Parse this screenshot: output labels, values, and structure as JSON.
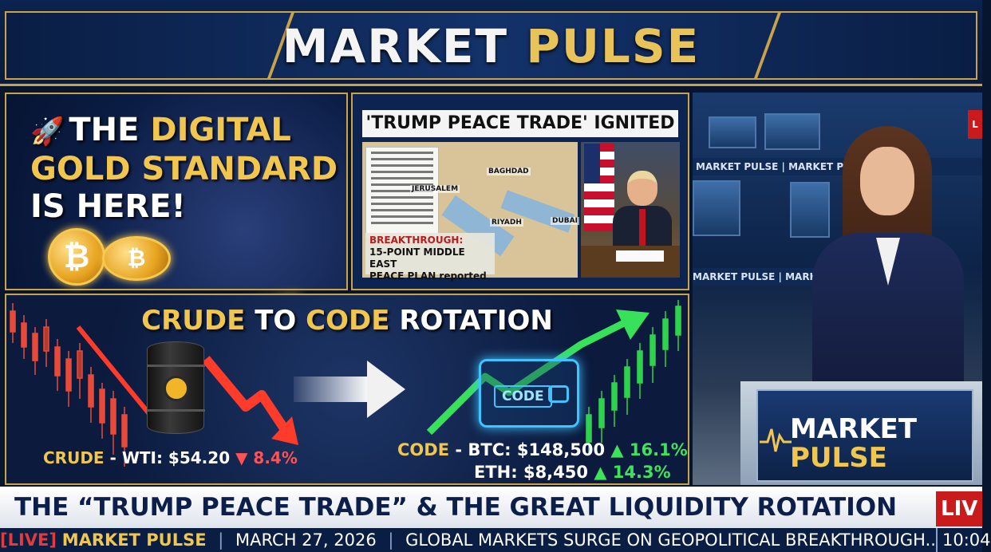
{
  "header": {
    "title_part1": "MARKET",
    "title_part2": "PULSE"
  },
  "gold_panel": {
    "line1_a": "THE",
    "line1_b": "DIGITAL",
    "line2": "GOLD STANDARD",
    "line3": "IS HERE!",
    "coin_symbol": "₿"
  },
  "news_panel": {
    "title": "'TRUMP PEACE TRADE' IGNITED",
    "cities": [
      "JERUSALEM",
      "BAGHDAD",
      "RIYADH",
      "DUBAI"
    ],
    "breakthrough_label": "BREAKTHROUGH:",
    "breakthrough_text_1": "15-POINT MIDDLE EAST",
    "breakthrough_text_2": "PEACE PLAN reported"
  },
  "rotation_panel": {
    "title_a": "CRUDE",
    "title_b": "TO",
    "title_c": "CODE",
    "title_d": "ROTATION",
    "crude_label": "CRUDE",
    "crude_value": " - WTI: $54.20 ",
    "crude_change": "▼ 8.4%",
    "wallet_label": "CODE",
    "code_label": "CODE",
    "btc_value": " - BTC: $148,500 ",
    "btc_change": "▲ 16.1%",
    "eth_value": "ETH: $8,450 ",
    "eth_change": "▲ 14.3%"
  },
  "studio": {
    "band_top": "MARKET PULSE  |  MARKET PULSE",
    "band_mid": "MARKET PULSE  |  MARKET PU",
    "live_tag": "L",
    "logo_line1": "MARKET",
    "logo_line2": "PULSE"
  },
  "headline": {
    "text": "THE “TRUMP PEACE TRADE” & THE GREAT LIQUIDITY ROTATION",
    "live": "LIV"
  },
  "ticker": {
    "live_tag": "[LIVE]",
    "brand": "MARKET PULSE",
    "date": "MARCH 27, 2026",
    "story": "GLOBAL MARKETS SURGE ON GEOPOLITICAL BREAKTHROUGH...",
    "time": "10:04"
  },
  "colors": {
    "gold": "#f0c64e",
    "navy": "#0a1d42",
    "live_red": "#c91b1b",
    "up_green": "#3ee35b",
    "down_red": "#ff5252"
  },
  "icons": [
    "rocket-icon",
    "bitcoin-coin-icon",
    "gold-bar-icon",
    "oil-barrel-icon",
    "arrow-right-icon",
    "wallet-icon",
    "pulse-icon"
  ]
}
